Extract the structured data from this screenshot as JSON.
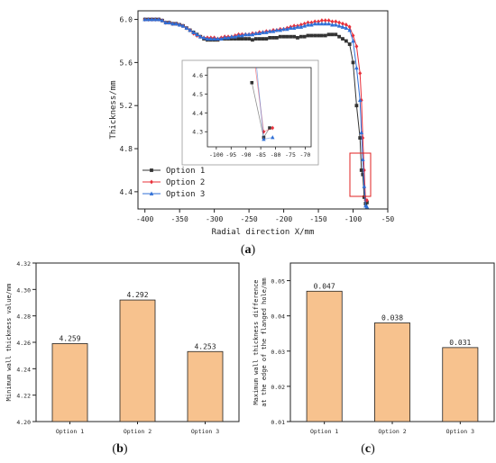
{
  "chart_data": [
    {
      "panel": "a",
      "type": "line",
      "xlabel": "Radial direction X/mm",
      "ylabel": "Thickness/mm",
      "xlim": [
        -410,
        -50
      ],
      "ylim": [
        4.24,
        6.08
      ],
      "xticks": [
        "-400",
        "-350",
        "-300",
        "-250",
        "-200",
        "-150",
        "-100",
        "-50"
      ],
      "yticks": [
        "4.4",
        "4.8",
        "5.2",
        "5.6",
        "6.0"
      ],
      "legend_position": "lower-left",
      "series": [
        {
          "name": "Option 1",
          "color": "#333333",
          "marker": "square",
          "x": [
            -400,
            -395,
            -390,
            -385,
            -380,
            -375,
            -370,
            -365,
            -360,
            -355,
            -350,
            -345,
            -340,
            -335,
            -330,
            -325,
            -320,
            -315,
            -310,
            -305,
            -300,
            -295,
            -290,
            -285,
            -280,
            -275,
            -270,
            -265,
            -260,
            -255,
            -250,
            -245,
            -240,
            -235,
            -230,
            -225,
            -220,
            -215,
            -210,
            -205,
            -200,
            -195,
            -190,
            -185,
            -180,
            -175,
            -170,
            -165,
            -160,
            -155,
            -150,
            -145,
            -140,
            -135,
            -130,
            -125,
            -120,
            -115,
            -110,
            -105,
            -100,
            -95,
            -90,
            -88,
            -86,
            -84,
            -82,
            -80
          ],
          "y": [
            6.0,
            6.0,
            6.0,
            6.0,
            6.0,
            5.99,
            5.97,
            5.97,
            5.96,
            5.96,
            5.95,
            5.94,
            5.92,
            5.9,
            5.88,
            5.86,
            5.84,
            5.82,
            5.81,
            5.81,
            5.81,
            5.81,
            5.82,
            5.82,
            5.82,
            5.82,
            5.82,
            5.82,
            5.82,
            5.82,
            5.82,
            5.81,
            5.82,
            5.82,
            5.82,
            5.82,
            5.83,
            5.83,
            5.83,
            5.84,
            5.84,
            5.84,
            5.84,
            5.84,
            5.83,
            5.84,
            5.84,
            5.85,
            5.85,
            5.85,
            5.85,
            5.85,
            5.85,
            5.86,
            5.86,
            5.86,
            5.84,
            5.82,
            5.8,
            5.77,
            5.6,
            5.2,
            4.9,
            4.6,
            4.56,
            4.35,
            4.29,
            4.3
          ]
        },
        {
          "name": "Option 2",
          "color": "#e8303a",
          "marker": "diamond",
          "x": [
            -400,
            -395,
            -390,
            -385,
            -380,
            -375,
            -370,
            -365,
            -360,
            -355,
            -350,
            -345,
            -340,
            -335,
            -330,
            -325,
            -320,
            -315,
            -310,
            -305,
            -300,
            -295,
            -290,
            -285,
            -280,
            -275,
            -270,
            -265,
            -260,
            -255,
            -250,
            -245,
            -240,
            -235,
            -230,
            -225,
            -220,
            -215,
            -210,
            -205,
            -200,
            -195,
            -190,
            -185,
            -180,
            -175,
            -170,
            -165,
            -160,
            -155,
            -150,
            -145,
            -140,
            -135,
            -130,
            -125,
            -120,
            -115,
            -110,
            -105,
            -100,
            -95,
            -90,
            -88,
            -86,
            -84,
            -82,
            -80
          ],
          "y": [
            6.0,
            6.0,
            6.0,
            6.0,
            6.0,
            5.99,
            5.97,
            5.97,
            5.96,
            5.96,
            5.95,
            5.94,
            5.92,
            5.9,
            5.87,
            5.85,
            5.84,
            5.83,
            5.83,
            5.83,
            5.83,
            5.82,
            5.83,
            5.84,
            5.84,
            5.84,
            5.85,
            5.86,
            5.86,
            5.86,
            5.86,
            5.87,
            5.87,
            5.88,
            5.88,
            5.89,
            5.89,
            5.9,
            5.9,
            5.91,
            5.91,
            5.92,
            5.93,
            5.94,
            5.94,
            5.95,
            5.96,
            5.97,
            5.97,
            5.98,
            5.98,
            5.99,
            5.99,
            5.99,
            5.98,
            5.98,
            5.97,
            5.96,
            5.95,
            5.93,
            5.85,
            5.75,
            5.5,
            5.25,
            4.9,
            4.6,
            4.32,
            4.32
          ]
        },
        {
          "name": "Option 3",
          "color": "#2f6fd6",
          "marker": "triangle",
          "x": [
            -400,
            -395,
            -390,
            -385,
            -380,
            -375,
            -370,
            -365,
            -360,
            -355,
            -350,
            -345,
            -340,
            -335,
            -330,
            -325,
            -320,
            -315,
            -310,
            -305,
            -300,
            -295,
            -290,
            -285,
            -280,
            -275,
            -270,
            -265,
            -260,
            -255,
            -250,
            -245,
            -240,
            -235,
            -230,
            -225,
            -220,
            -215,
            -210,
            -205,
            -200,
            -195,
            -190,
            -185,
            -180,
            -175,
            -170,
            -165,
            -160,
            -155,
            -150,
            -145,
            -140,
            -135,
            -130,
            -125,
            -120,
            -115,
            -110,
            -105,
            -100,
            -95,
            -90,
            -88,
            -86,
            -84,
            -82,
            -80
          ],
          "y": [
            6.0,
            6.0,
            6.0,
            6.0,
            6.0,
            5.99,
            5.97,
            5.97,
            5.96,
            5.96,
            5.95,
            5.94,
            5.92,
            5.9,
            5.88,
            5.86,
            5.84,
            5.83,
            5.82,
            5.82,
            5.82,
            5.82,
            5.82,
            5.83,
            5.83,
            5.84,
            5.84,
            5.85,
            5.85,
            5.86,
            5.86,
            5.86,
            5.87,
            5.87,
            5.88,
            5.88,
            5.89,
            5.89,
            5.9,
            5.9,
            5.91,
            5.91,
            5.92,
            5.92,
            5.93,
            5.93,
            5.94,
            5.95,
            5.95,
            5.96,
            5.96,
            5.96,
            5.96,
            5.96,
            5.95,
            5.95,
            5.94,
            5.93,
            5.92,
            5.9,
            5.8,
            5.55,
            5.25,
            4.95,
            4.7,
            4.45,
            4.27,
            4.26
          ]
        }
      ],
      "inset": {
        "xlim": [
          -103,
          -68
        ],
        "ylim": [
          4.22,
          4.64
        ],
        "xticks": [
          "-100",
          "-95",
          "-90",
          "-85",
          "-80",
          "-75",
          "-70"
        ],
        "yticks": [
          "4.3",
          "4.4",
          "4.5",
          "4.6"
        ],
        "series": [
          {
            "name": "Option 1",
            "x": [
              -88,
              -84,
              -82
            ],
            "y": [
              4.56,
              4.27,
              4.32
            ]
          },
          {
            "name": "Option 2",
            "x": [
              -87,
              -84,
              -81
            ],
            "y": [
              4.66,
              4.3,
              4.32
            ]
          },
          {
            "name": "Option 3",
            "x": [
              -86.5,
              -84,
              -81
            ],
            "y": [
              4.66,
              4.26,
              4.27
            ]
          }
        ]
      }
    },
    {
      "panel": "b",
      "type": "bar",
      "categories": [
        "Option 1",
        "Option 2",
        "Option 3"
      ],
      "values": [
        4.259,
        4.292,
        4.253
      ],
      "value_labels": [
        "4.259",
        "4.292",
        "4.253"
      ],
      "ylabel": "Minimum wall thickness value/mm",
      "ylim": [
        4.2,
        4.32
      ],
      "yticks": [
        "4.20",
        "4.22",
        "4.24",
        "4.26",
        "4.28",
        "4.30",
        "4.32"
      ],
      "bar_color": "#f7c28e"
    },
    {
      "panel": "c",
      "type": "bar",
      "categories": [
        "Option 1",
        "Option 2",
        "Option 3"
      ],
      "values": [
        0.047,
        0.038,
        0.031
      ],
      "value_labels": [
        "0.047",
        "0.038",
        "0.031"
      ],
      "ylabel_lines": [
        "Maximum wall thickness difference",
        "at the edge of the flanged hole/mm"
      ],
      "ylim": [
        0.01,
        0.055
      ],
      "yticks": [
        "0.01",
        "0.02",
        "0.03",
        "0.04",
        "0.05"
      ],
      "bar_color": "#f7c28e"
    }
  ],
  "panel_labels": {
    "a": {
      "open": "(",
      "letter": "a",
      "close": ")"
    },
    "b": {
      "open": "(",
      "letter": "b",
      "close": ")"
    },
    "c": {
      "open": "(",
      "letter": "c",
      "close": ")"
    }
  }
}
